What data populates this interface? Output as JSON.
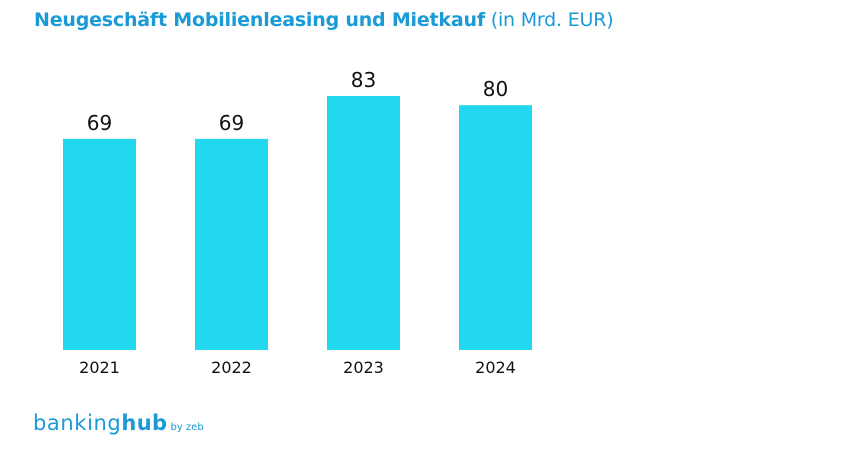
{
  "chart_data": {
    "type": "bar",
    "title": "Neugeschäft Mobilienleasing und Mietkauf",
    "title_unit": "(in Mrd. EUR)",
    "categories": [
      "2021",
      "2022",
      "2023",
      "2024"
    ],
    "values": [
      69,
      69,
      83,
      80
    ],
    "value_labels": [
      "69",
      "69",
      "83",
      "80"
    ],
    "xlabel": "",
    "ylabel": "",
    "ylim": [
      0,
      83
    ],
    "grid": false,
    "legend": "none",
    "bar_color": "#22d8ef",
    "title_color": "#1a9ad6"
  },
  "logo": {
    "brand_part1": "banking",
    "brand_part2": "hub",
    "brand_suffix": "by zeb",
    "color": "#1a9ad6"
  }
}
